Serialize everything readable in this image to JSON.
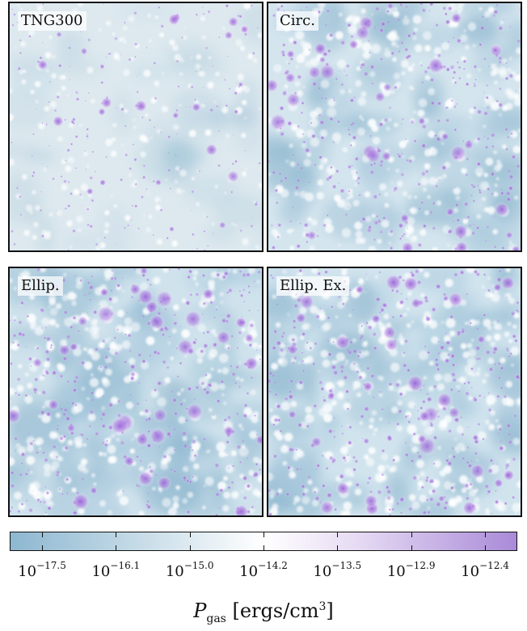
{
  "panels": [
    {
      "label": "TNG300"
    },
    {
      "label": "Circ."
    },
    {
      "label": "Ellip."
    },
    {
      "label": "Ellip. Ex."
    }
  ],
  "colorbar": {
    "label": "P_gas [ergs/cm³]",
    "tick_labels": [
      "10^−17.5",
      "10^−16.1",
      "10^−15.0",
      "10^−14.2",
      "10^−13.5",
      "10^−12.9",
      "10^−12.4"
    ],
    "tick_exponents": [
      "−17.5",
      "−16.1",
      "−15.0",
      "−14.2",
      "−13.5",
      "−12.9",
      "−12.4"
    ],
    "tick_base": "10",
    "colors": [
      "#8db7d1",
      "#ffffff",
      "#a98ad8"
    ]
  },
  "chart_data": {
    "type": "heatmap",
    "title": "",
    "xlabel": "",
    "ylabel": "",
    "panels": [
      "TNG300",
      "Circ.",
      "Ellip.",
      "Ellip. Ex."
    ],
    "colorbar_label": "P_gas [ergs/cm³]",
    "colorbar_ticks": [
      -17.5,
      -16.1,
      -15.0,
      -14.2,
      -13.5,
      -12.9,
      -12.4
    ],
    "colorbar_scale": "log"
  }
}
